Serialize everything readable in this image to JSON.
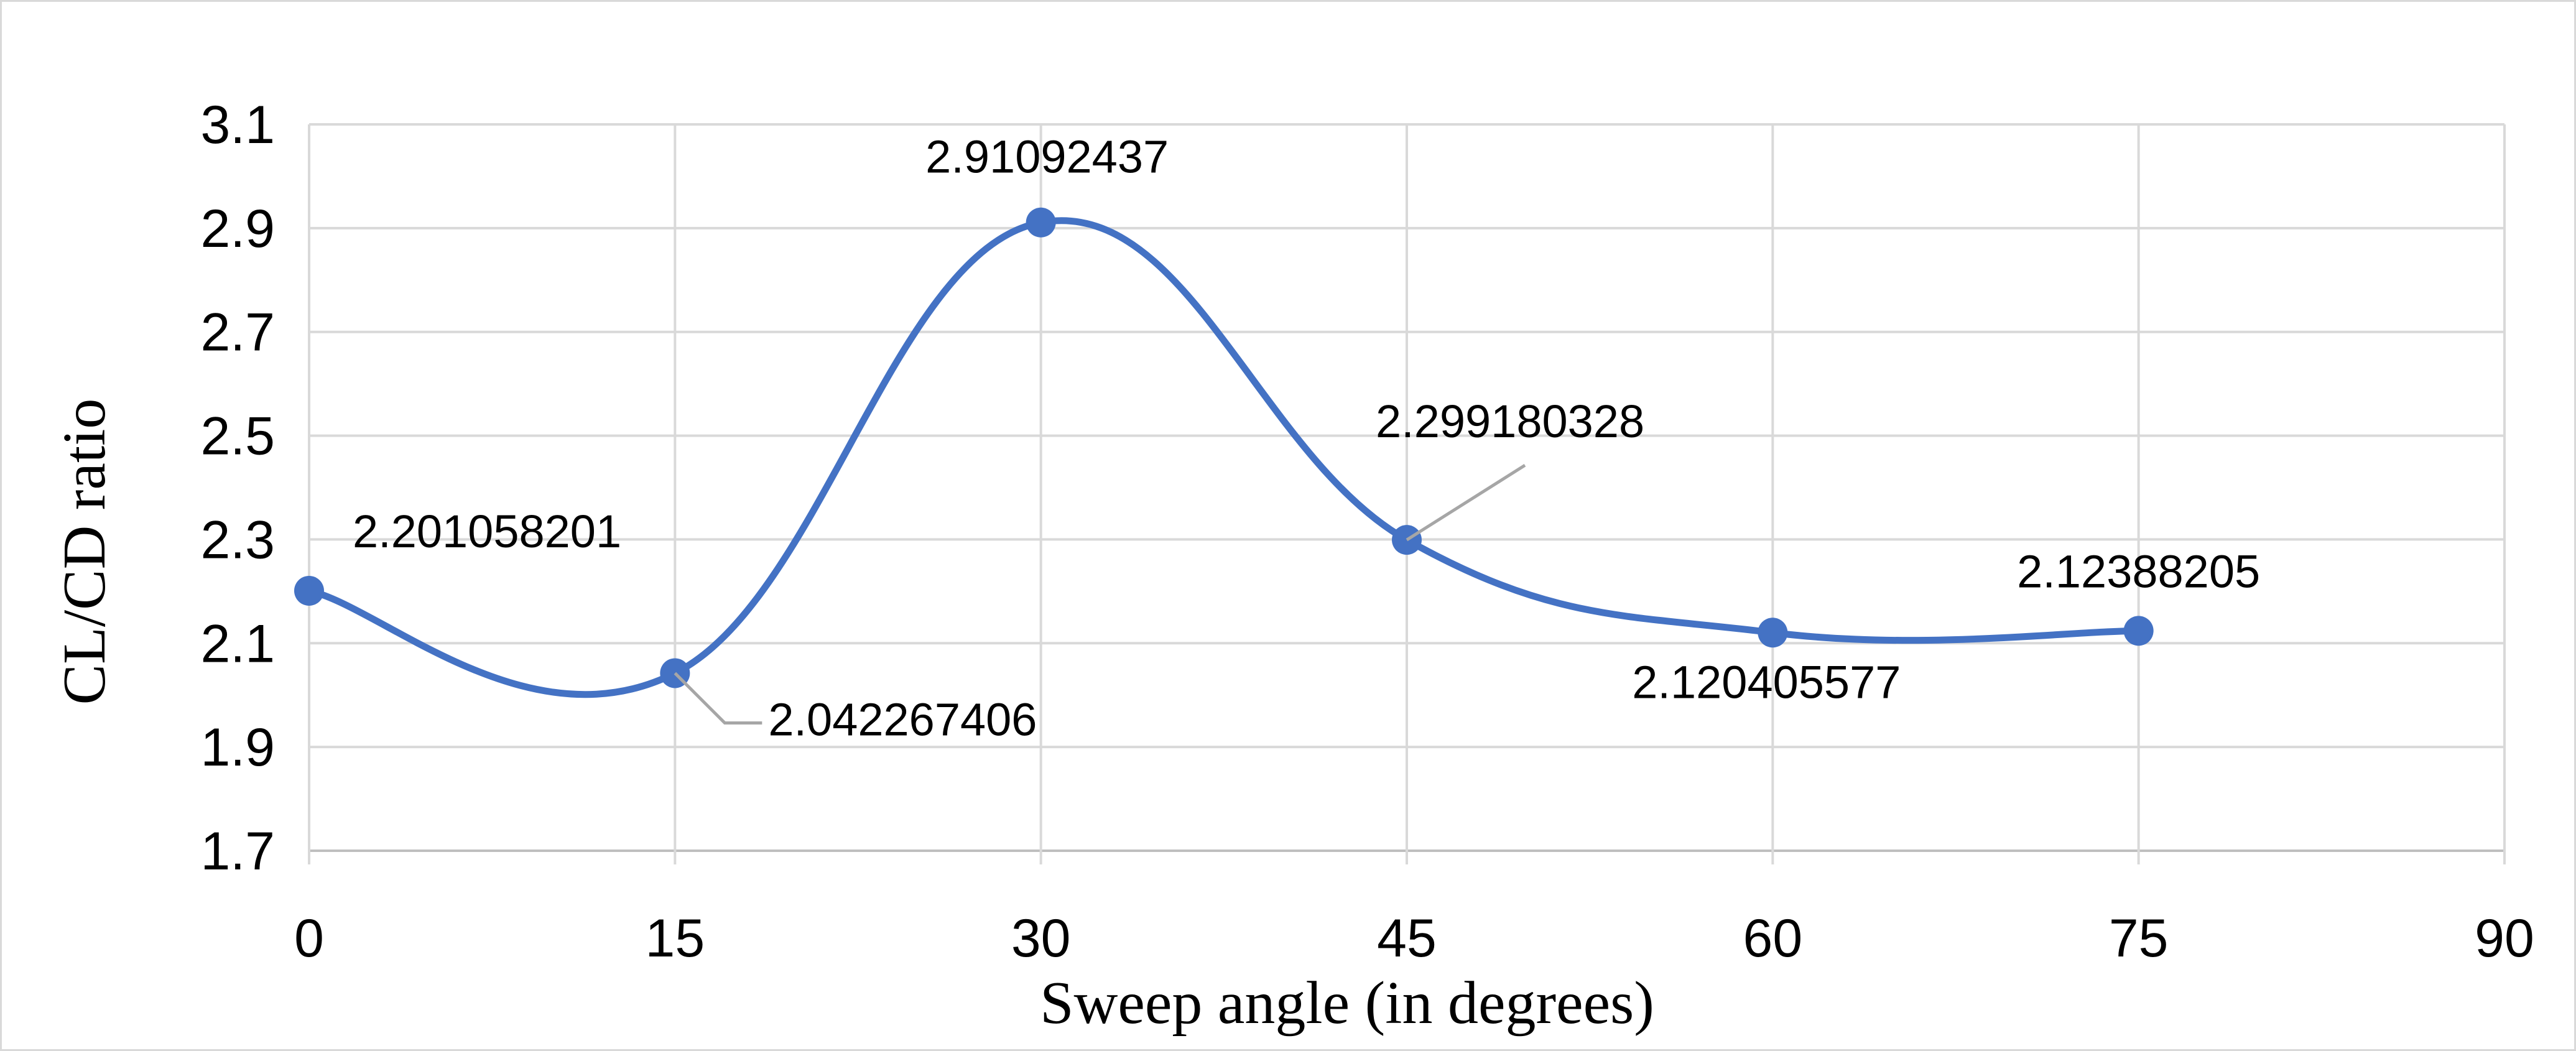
{
  "chart_data": {
    "type": "line",
    "smooth": true,
    "title": "",
    "xlabel": "Sweep angle (in degrees)",
    "ylabel": "CL/CD ratio",
    "xlim": [
      0,
      90
    ],
    "ylim": [
      1.7,
      3.1
    ],
    "x_ticks": [
      "0",
      "15",
      "30",
      "45",
      "60",
      "75",
      "90"
    ],
    "y_ticks": [
      "1.7",
      "1.9",
      "2.1",
      "2.3",
      "2.5",
      "2.7",
      "2.9",
      "3.1"
    ],
    "grid": true,
    "legend": "none",
    "series": [
      {
        "color": "#4472c4",
        "x": [
          0,
          15,
          30,
          45,
          60,
          75
        ],
        "y": [
          2.201058201,
          2.042267406,
          2.91092437,
          2.299180328,
          2.120405577,
          2.12388205
        ],
        "labels": [
          "2.201058201",
          "2.042267406",
          "2.91092437",
          "2.299180328",
          "2.120405577",
          "2.12388205"
        ]
      }
    ]
  }
}
